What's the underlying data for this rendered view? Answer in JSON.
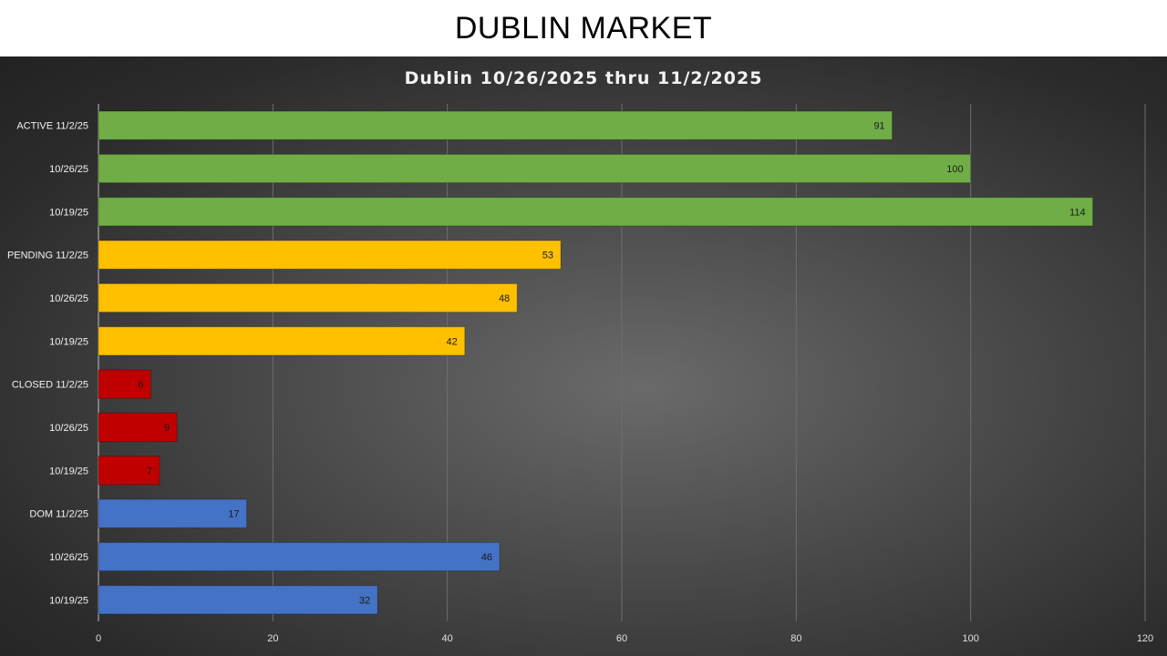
{
  "page": {
    "title": "DUBLIN MARKET"
  },
  "chart_data": {
    "type": "bar",
    "orientation": "horizontal",
    "title": "Dublin 10/26/2025 thru 11/2/2025",
    "categories": [
      "ACTIVE 11/2/25",
      "10/26/25",
      "10/19/25",
      "PENDING 11/2/25",
      "10/26/25",
      "10/19/25",
      "CLOSED 11/2/25",
      "10/26/25",
      "10/19/25",
      "DOM 11/2/25",
      "10/26/25",
      "10/19/25"
    ],
    "values": [
      91,
      100,
      114,
      53,
      48,
      42,
      6,
      9,
      7,
      17,
      46,
      32
    ],
    "bar_colors": [
      "#70ad47",
      "#70ad47",
      "#70ad47",
      "#ffc000",
      "#ffc000",
      "#ffc000",
      "#c00000",
      "#c00000",
      "#c00000",
      "#4472c4",
      "#4472c4",
      "#4472c4"
    ],
    "xlim": [
      0,
      120
    ],
    "x_ticks": [
      "0",
      "20",
      "40",
      "60",
      "80",
      "100",
      "120"
    ],
    "grid": "vertical",
    "data_labels": true
  }
}
